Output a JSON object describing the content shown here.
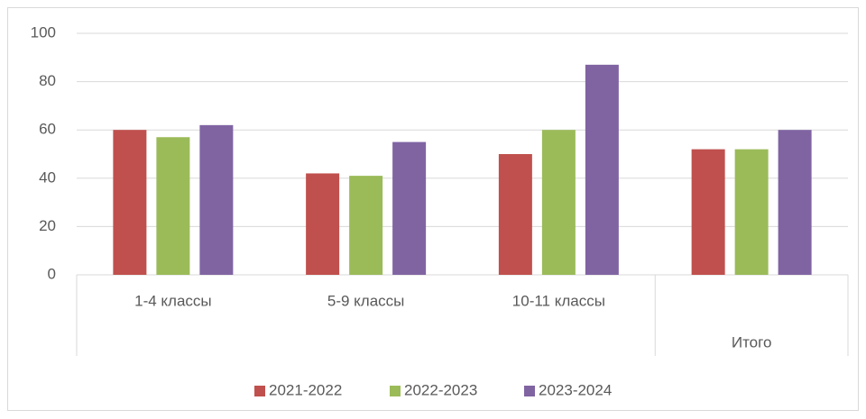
{
  "chart_data": {
    "type": "bar",
    "categories": [
      "1-4  классы",
      "5-9 классы",
      "10-11  классы",
      "Итого"
    ],
    "series": [
      {
        "name": "2021-2022",
        "color": "#c0504d",
        "values": [
          60,
          42,
          50,
          52
        ]
      },
      {
        "name": "2022-2023",
        "color": "#9bbb59",
        "values": [
          57,
          41,
          60,
          52
        ]
      },
      {
        "name": "2023-2024",
        "color": "#8064a2",
        "values": [
          62,
          55,
          87,
          60
        ]
      }
    ],
    "ylim": [
      0,
      100
    ],
    "yticks": [
      0,
      20,
      40,
      60,
      80,
      100
    ],
    "grid": true,
    "legend": "bottom"
  }
}
